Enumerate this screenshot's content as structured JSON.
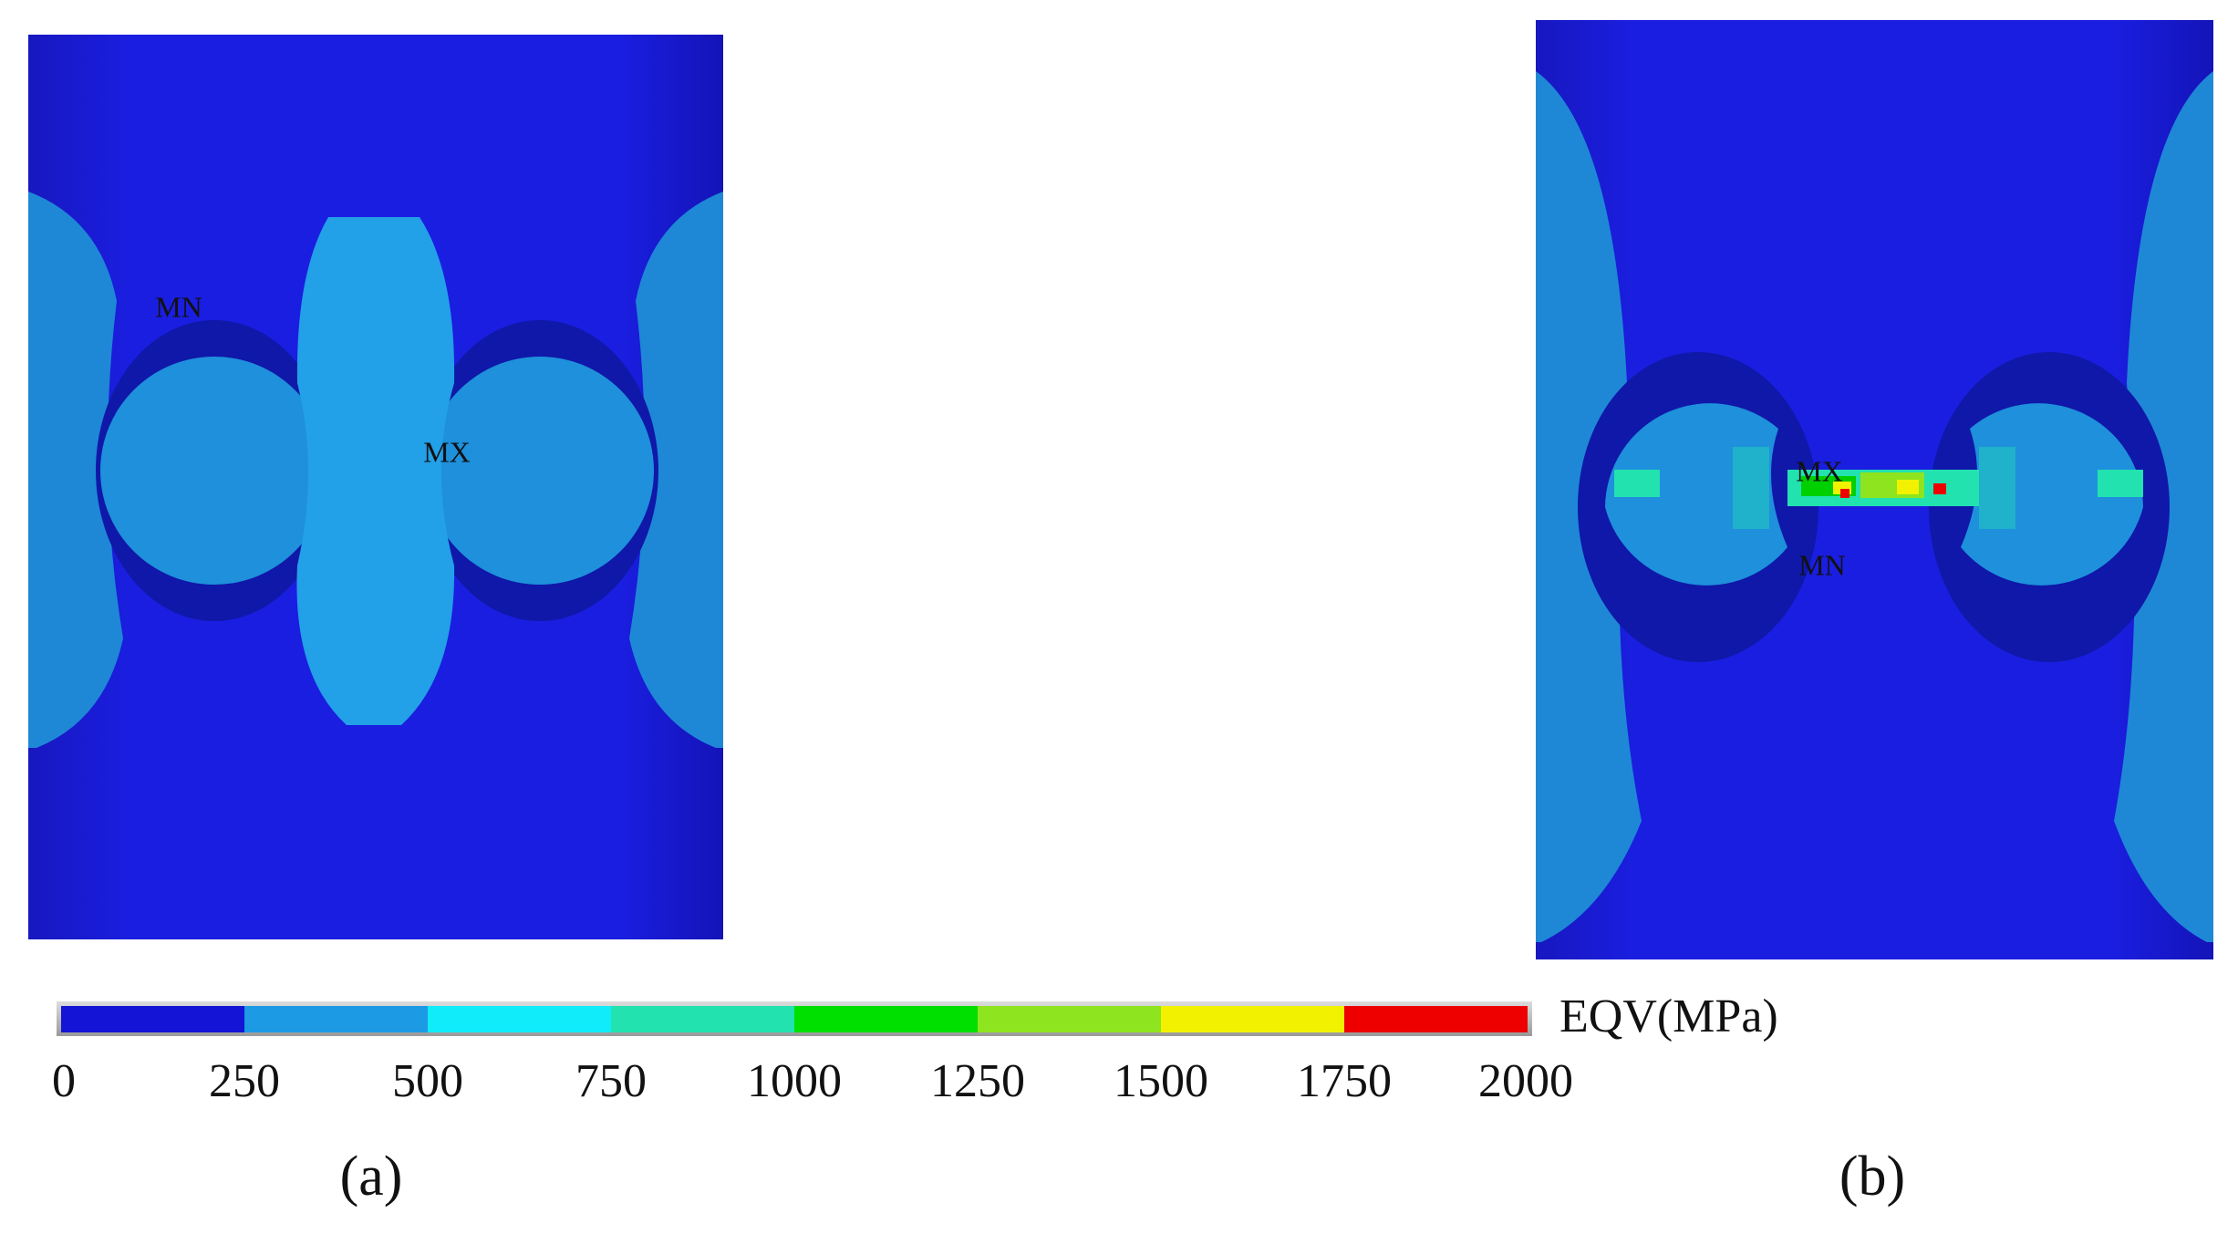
{
  "panels": [
    {
      "label": "(a)",
      "markers": [
        "MN",
        "MX"
      ]
    },
    {
      "label": "(b)",
      "markers": [
        "MX",
        "MN"
      ]
    }
  ],
  "colorbar": {
    "title": "EQV(MPa)",
    "ticks": [
      0,
      250,
      500,
      750,
      1000,
      1250,
      1500,
      1750,
      2000
    ],
    "colors": [
      "#1414d6",
      "#1c9ae4",
      "#10ecfa",
      "#22e2b0",
      "#00e000",
      "#8ee41e",
      "#f2f200",
      "#ee0000"
    ]
  }
}
